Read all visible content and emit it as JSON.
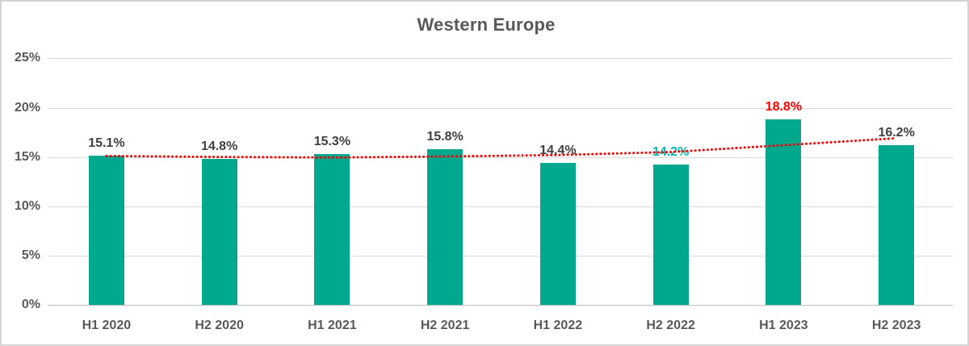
{
  "title": "Western Europe",
  "chart_data": {
    "type": "bar",
    "title": "Western Europe",
    "categories": [
      "H1 2020",
      "H2 2020",
      "H1 2021",
      "H2 2021",
      "H1 2022",
      "H2 2022",
      "H1 2023",
      "H2 2023"
    ],
    "values": [
      15.1,
      14.8,
      15.3,
      15.8,
      14.4,
      14.2,
      18.8,
      16.2
    ],
    "value_labels": [
      "15.1%",
      "14.8%",
      "15.3%",
      "15.8%",
      "14.4%",
      "14.2%",
      "18.8%",
      "16.2%"
    ],
    "value_label_colors": [
      "#404040",
      "#404040",
      "#404040",
      "#404040",
      "#404040",
      "#00b9b2",
      "#ff0000",
      "#404040"
    ],
    "xlabel": "",
    "ylabel": "",
    "ylim": [
      0,
      25
    ],
    "y_ticks": [
      {
        "label": "0%",
        "value": 0
      },
      {
        "label": "5%",
        "value": 5
      },
      {
        "label": "10%",
        "value": 10
      },
      {
        "label": "15%",
        "value": 15
      },
      {
        "label": "20%",
        "value": 20
      },
      {
        "label": "25%",
        "value": 25
      }
    ],
    "grid": true,
    "legend": "none",
    "series_color": "#00a88e",
    "trendline": {
      "style": "dotted",
      "color": "#ff0000",
      "values": [
        15.1,
        15.0,
        14.95,
        15.05,
        15.2,
        15.5,
        16.2,
        16.9
      ]
    }
  }
}
